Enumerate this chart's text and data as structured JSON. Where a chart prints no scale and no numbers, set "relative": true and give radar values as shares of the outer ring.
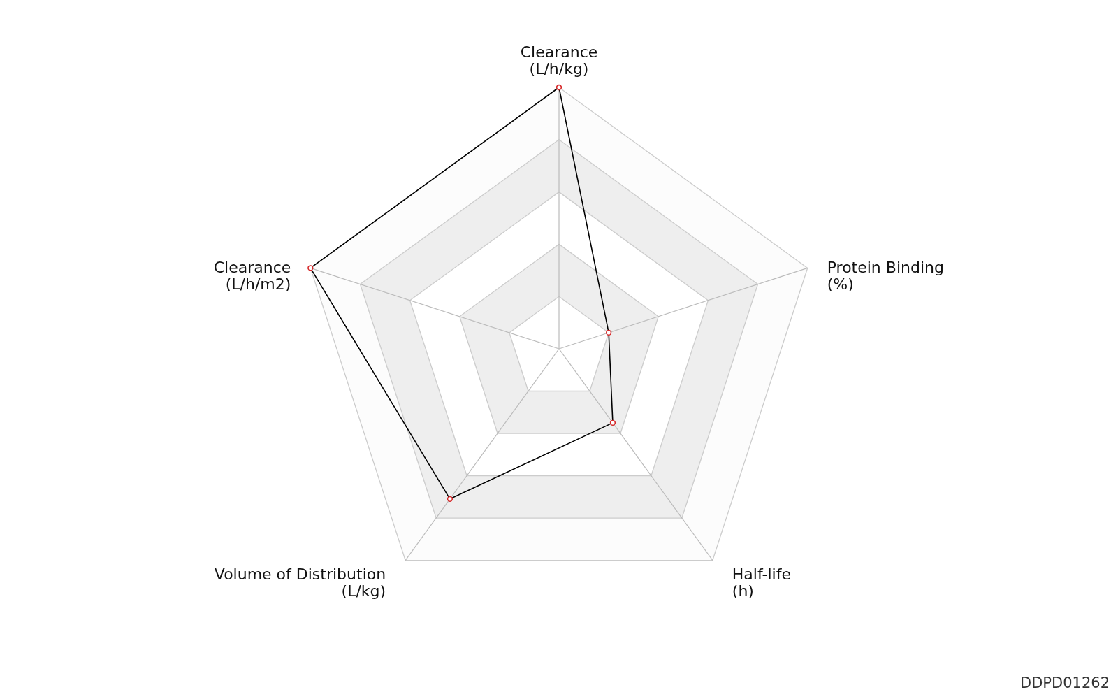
{
  "chart_data": {
    "type": "radar",
    "relative": true,
    "categories": [
      "Clearance\n(L/h/kg)",
      "Protein Binding\n(%)",
      "Half-life\n(h)",
      "Volume of Distribution\n(L/kg)",
      "Clearance\n(L/h/m2)"
    ],
    "series": [
      {
        "color": "#000000",
        "values": [
          1.0,
          0.2,
          0.35,
          0.71,
          1.0
        ]
      }
    ],
    "marker": "circle",
    "grid": true,
    "annotations": [
      "DDPD01262"
    ]
  }
}
